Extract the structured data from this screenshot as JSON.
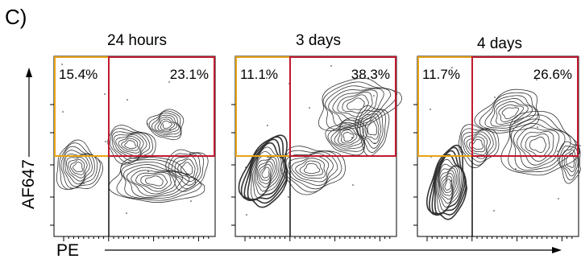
{
  "panel_label": "C)",
  "chart_data": {
    "type": "contour",
    "xlabel": "PE",
    "ylabel": "AF647",
    "panels": [
      {
        "title": "24 hours",
        "quadrants": {
          "upper_left": "15.4%",
          "upper_right": "23.1%"
        }
      },
      {
        "title": "3 days",
        "quadrants": {
          "upper_left": "11.1%",
          "upper_right": "38.3%"
        }
      },
      {
        "title": "4 days",
        "quadrants": {
          "upper_left": "11.7%",
          "upper_right": "26.6%"
        }
      }
    ],
    "gate_colors": {
      "upper_left": "#e8a317",
      "upper_right": "#c0192e"
    }
  }
}
